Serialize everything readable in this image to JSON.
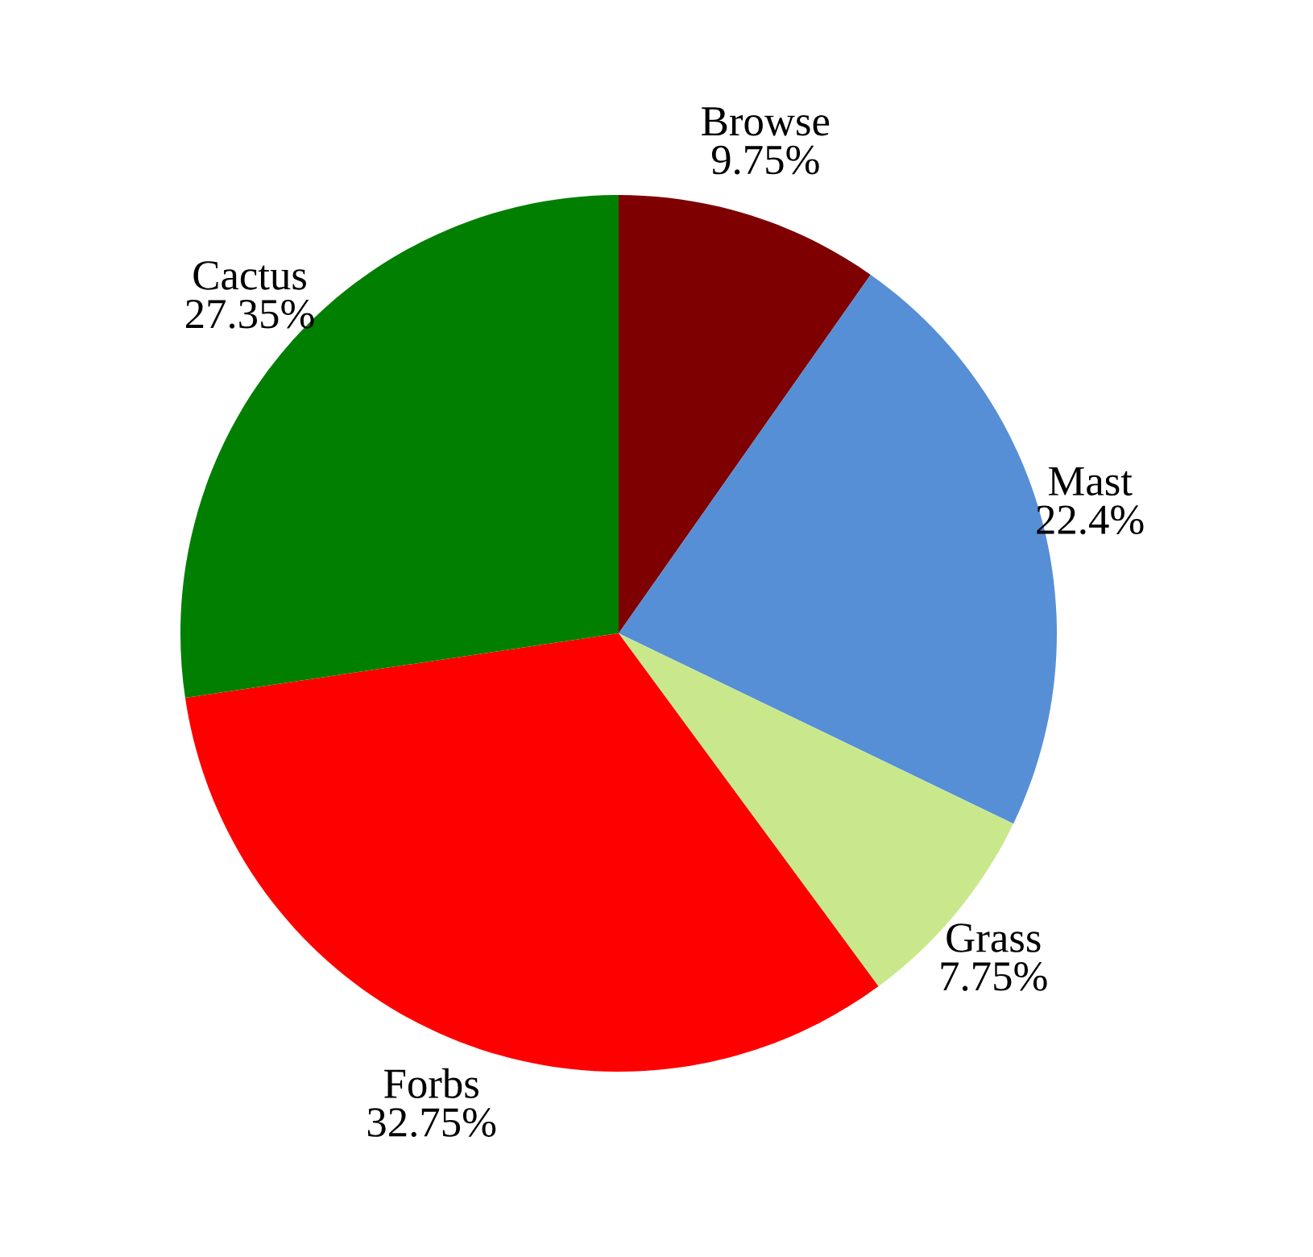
{
  "chart_data": {
    "type": "pie",
    "categories": [
      "Browse",
      "Mast",
      "Grass",
      "Forbs",
      "Cactus"
    ],
    "values": [
      9.75,
      22.4,
      7.75,
      32.75,
      27.35
    ],
    "colors": [
      "#7f0000",
      "#568fd6",
      "#c9e88c",
      "#ff0000",
      "#007f00"
    ],
    "value_labels": [
      "9.75%",
      "22.4%",
      "7.75%",
      "32.75%",
      "27.35%"
    ]
  }
}
